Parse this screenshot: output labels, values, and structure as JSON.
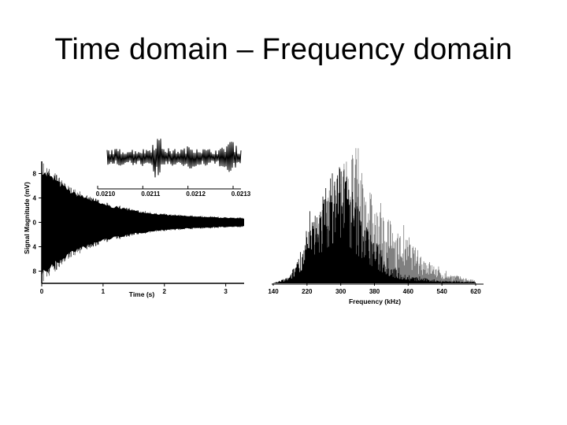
{
  "slide": {
    "title": "Time domain – Frequency domain"
  },
  "chart_data": [
    {
      "id": "time-domain",
      "type": "line",
      "xlabel": "Time (s)",
      "ylabel": "Signal Magnitude (mV)",
      "xticks": [
        "0",
        "1",
        "2",
        "3"
      ],
      "yticks": [
        "8",
        "4",
        "0",
        "4",
        "8"
      ],
      "xlim": [
        0,
        3.3
      ],
      "ylim": [
        -10,
        10
      ],
      "grid": false,
      "legend": "none",
      "color": "#000000",
      "series": [
        {
          "envelope": {
            "x": [
              0,
              0.5,
              1,
              1.5,
              2,
              2.5,
              3,
              3.3
            ],
            "amplitude": [
              9,
              5.2,
              3.1,
              2.0,
              1.3,
              1.0,
              0.8,
              0.7
            ]
          }
        }
      ]
    },
    {
      "id": "time-domain-inset",
      "type": "line",
      "xticks": [
        "0.0210",
        "0.0211",
        "0.0212",
        "0.0213"
      ],
      "xlim": [
        0.021,
        0.0213
      ],
      "color": "#000000"
    },
    {
      "id": "frequency-domain",
      "type": "bar",
      "xlabel": "Frequency (kHz)",
      "xticks": [
        "140",
        "220",
        "300",
        "380",
        "460",
        "540",
        "620"
      ],
      "xlim": [
        140,
        640
      ],
      "grid": false,
      "legend": "none",
      "series": [
        {
          "color": "#000000",
          "envelope": {
            "x": [
              140,
              180,
              220,
              260,
              300,
              340,
              380,
              420,
              460,
              540,
              620
            ],
            "y": [
              0,
              0.05,
              0.35,
              0.65,
              0.9,
              0.55,
              0.3,
              0.12,
              0.05,
              0.02,
              0.01
            ]
          }
        },
        {
          "color": "#808080",
          "envelope": {
            "x": [
              140,
              200,
              240,
              300,
              340,
              380,
              420,
              460,
              500,
              540,
              620
            ],
            "y": [
              0,
              0.05,
              0.4,
              0.85,
              0.95,
              0.55,
              0.4,
              0.3,
              0.18,
              0.08,
              0.02
            ]
          }
        }
      ]
    }
  ]
}
